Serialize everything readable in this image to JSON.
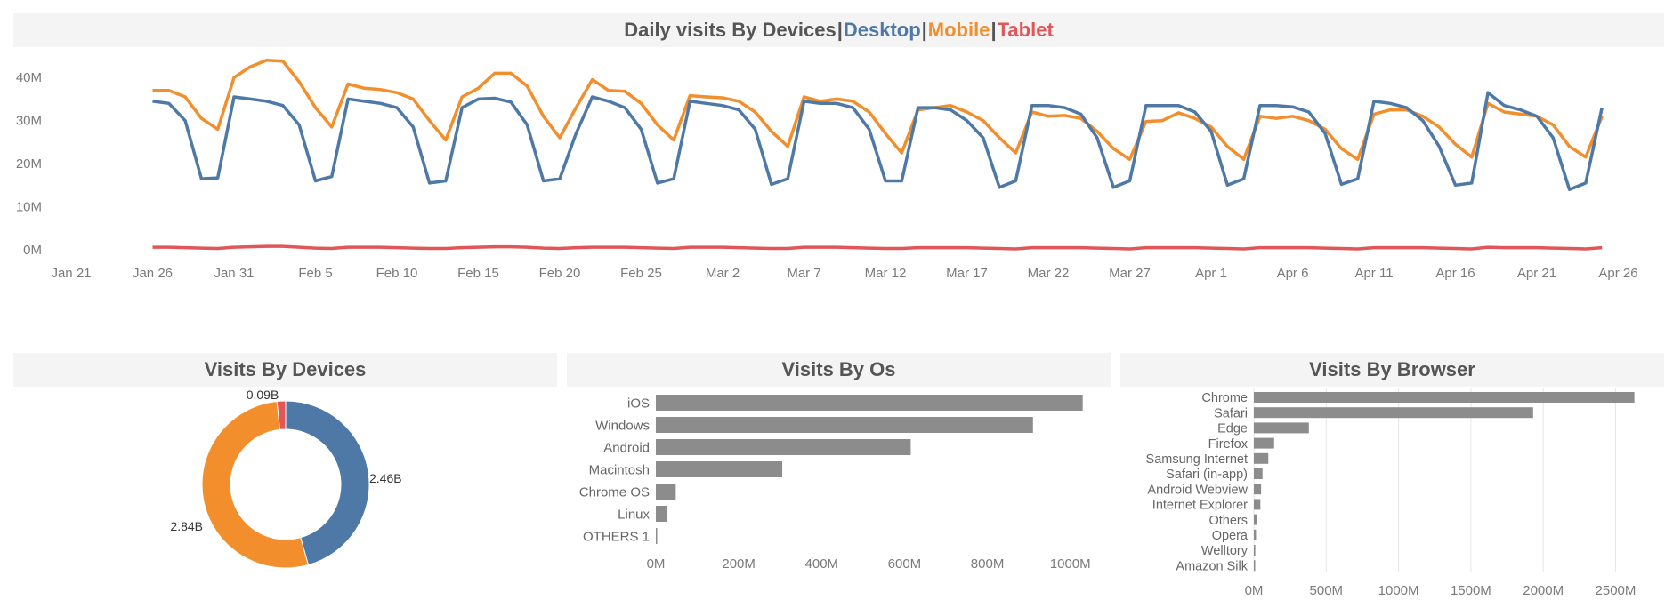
{
  "dashboard": {
    "main_title": {
      "prefix": "Daily visits By Devices",
      "sep": "|",
      "desktop": "Desktop",
      "mobile": "Mobile",
      "tablet": "Tablet"
    },
    "donut_title": "Visits By Devices",
    "os_title": "Visits By Os",
    "browser_title": "Visits By Browser"
  },
  "colors": {
    "desktop": "#4e79a7",
    "mobile": "#f28e2b",
    "tablet": "#e15759",
    "bar": "#8c8c8c",
    "axis_text": "#7a7a7a",
    "grid": "#e6e6e6"
  },
  "chart_data": [
    {
      "type": "line",
      "title": "Daily visits By Devices",
      "x_ticks": [
        "Jan 21",
        "Jan 26",
        "Jan 31",
        "Feb 5",
        "Feb 10",
        "Feb 15",
        "Feb 20",
        "Feb 25",
        "Mar 2",
        "Mar 7",
        "Mar 12",
        "Mar 17",
        "Mar 22",
        "Mar 27",
        "Apr 1",
        "Apr 6",
        "Apr 11",
        "Apr 16",
        "Apr 21",
        "Apr 26"
      ],
      "y_ticks": [
        "0M",
        "10M",
        "20M",
        "30M",
        "40M"
      ],
      "ylim": [
        0,
        45
      ],
      "x_start_label": "Jan 26",
      "series": [
        {
          "name": "Desktop",
          "values": [
            34.5,
            34.0,
            30.0,
            16.5,
            16.7,
            35.5,
            35.0,
            34.5,
            33.5,
            29.0,
            16.0,
            17.0,
            35.0,
            34.5,
            34.0,
            33.0,
            28.5,
            15.5,
            16.0,
            33.0,
            35.0,
            35.2,
            34.3,
            29.0,
            16.0,
            16.5,
            27.0,
            35.5,
            34.5,
            33.0,
            28.0,
            15.5,
            16.5,
            34.5,
            34.0,
            33.5,
            32.5,
            28.0,
            15.2,
            16.5,
            34.5,
            34.0,
            34.0,
            33.0,
            28.0,
            16.0,
            16.0,
            33.0,
            33.0,
            32.5,
            30.0,
            26.0,
            14.5,
            16.0,
            33.5,
            33.5,
            33.0,
            31.5,
            26.0,
            14.5,
            16.0,
            33.5,
            33.5,
            33.5,
            32.0,
            27.5,
            15.0,
            16.5,
            33.5,
            33.5,
            33.2,
            32.0,
            27.0,
            15.2,
            16.5,
            34.5,
            34.0,
            33.0,
            30.0,
            24.0,
            15.0,
            15.5,
            36.5,
            33.5,
            32.5,
            31.0,
            26.0,
            14.0,
            15.5,
            33.0
          ]
        },
        {
          "name": "Mobile",
          "values": [
            37.0,
            37.0,
            35.5,
            30.5,
            28.0,
            40.0,
            42.5,
            44.0,
            43.8,
            39.0,
            33.0,
            28.5,
            38.5,
            37.5,
            37.2,
            36.5,
            35.0,
            30.0,
            25.5,
            35.5,
            37.5,
            41.0,
            41.0,
            38.0,
            31.0,
            26.0,
            33.0,
            39.5,
            37.0,
            36.8,
            34.0,
            29.0,
            25.5,
            35.8,
            35.5,
            35.3,
            34.5,
            32.0,
            27.5,
            24.0,
            35.5,
            34.5,
            35.0,
            34.5,
            32.0,
            27.0,
            22.5,
            32.5,
            33.0,
            33.5,
            32.0,
            30.0,
            26.0,
            22.5,
            32.0,
            31.0,
            31.2,
            30.5,
            27.5,
            23.5,
            21.0,
            29.8,
            30.0,
            31.8,
            30.5,
            28.5,
            24.0,
            21.0,
            31.0,
            30.5,
            31.0,
            30.0,
            28.0,
            23.5,
            21.0,
            31.5,
            32.5,
            32.5,
            31.0,
            28.5,
            24.5,
            21.5,
            34.0,
            32.0,
            31.5,
            31.0,
            29.0,
            24.0,
            21.5,
            31.0
          ]
        },
        {
          "name": "Tablet",
          "values": [
            0.6,
            0.6,
            0.5,
            0.4,
            0.3,
            0.6,
            0.7,
            0.8,
            0.8,
            0.6,
            0.4,
            0.3,
            0.6,
            0.6,
            0.6,
            0.5,
            0.4,
            0.3,
            0.3,
            0.5,
            0.6,
            0.7,
            0.7,
            0.6,
            0.4,
            0.3,
            0.5,
            0.6,
            0.6,
            0.6,
            0.5,
            0.4,
            0.3,
            0.6,
            0.6,
            0.6,
            0.5,
            0.4,
            0.3,
            0.3,
            0.6,
            0.6,
            0.6,
            0.5,
            0.4,
            0.3,
            0.3,
            0.5,
            0.5,
            0.5,
            0.5,
            0.4,
            0.3,
            0.2,
            0.5,
            0.5,
            0.5,
            0.5,
            0.4,
            0.3,
            0.2,
            0.5,
            0.5,
            0.5,
            0.5,
            0.4,
            0.3,
            0.2,
            0.5,
            0.5,
            0.5,
            0.5,
            0.4,
            0.3,
            0.2,
            0.5,
            0.5,
            0.5,
            0.5,
            0.4,
            0.3,
            0.2,
            0.6,
            0.5,
            0.5,
            0.5,
            0.4,
            0.3,
            0.2,
            0.5
          ]
        }
      ]
    },
    {
      "type": "pie",
      "title": "Visits By Devices",
      "slices": [
        {
          "name": "Desktop",
          "value": 2.46,
          "label": "2.46B"
        },
        {
          "name": "Mobile",
          "value": 2.84,
          "label": "2.84B"
        },
        {
          "name": "Tablet",
          "value": 0.09,
          "label": "0.09B"
        }
      ]
    },
    {
      "type": "bar",
      "orientation": "horizontal",
      "title": "Visits By Os",
      "categories": [
        "iOS",
        "Windows",
        "Android",
        "Macintosh",
        "Chrome OS",
        "Linux",
        "OTHERS 1"
      ],
      "values": [
        1030,
        910,
        615,
        305,
        48,
        28,
        3
      ],
      "x_ticks": [
        "0M",
        "200M",
        "400M",
        "600M",
        "800M",
        "1000M"
      ],
      "xlim": [
        0,
        1050
      ]
    },
    {
      "type": "bar",
      "orientation": "horizontal",
      "title": "Visits By Browser",
      "categories": [
        "Chrome",
        "Safari",
        "Edge",
        "Firefox",
        "Samsung Internet",
        "Safari (in-app)",
        "Android Webview",
        "Internet Explorer",
        "Others",
        "Opera",
        "Welltory",
        "Amazon Silk"
      ],
      "values": [
        2630,
        1930,
        380,
        140,
        100,
        60,
        50,
        45,
        20,
        15,
        10,
        5
      ],
      "x_ticks": [
        "0M",
        "500M",
        "1000M",
        "1500M",
        "2000M",
        "2500M"
      ],
      "xlim": [
        0,
        2700
      ]
    }
  ]
}
